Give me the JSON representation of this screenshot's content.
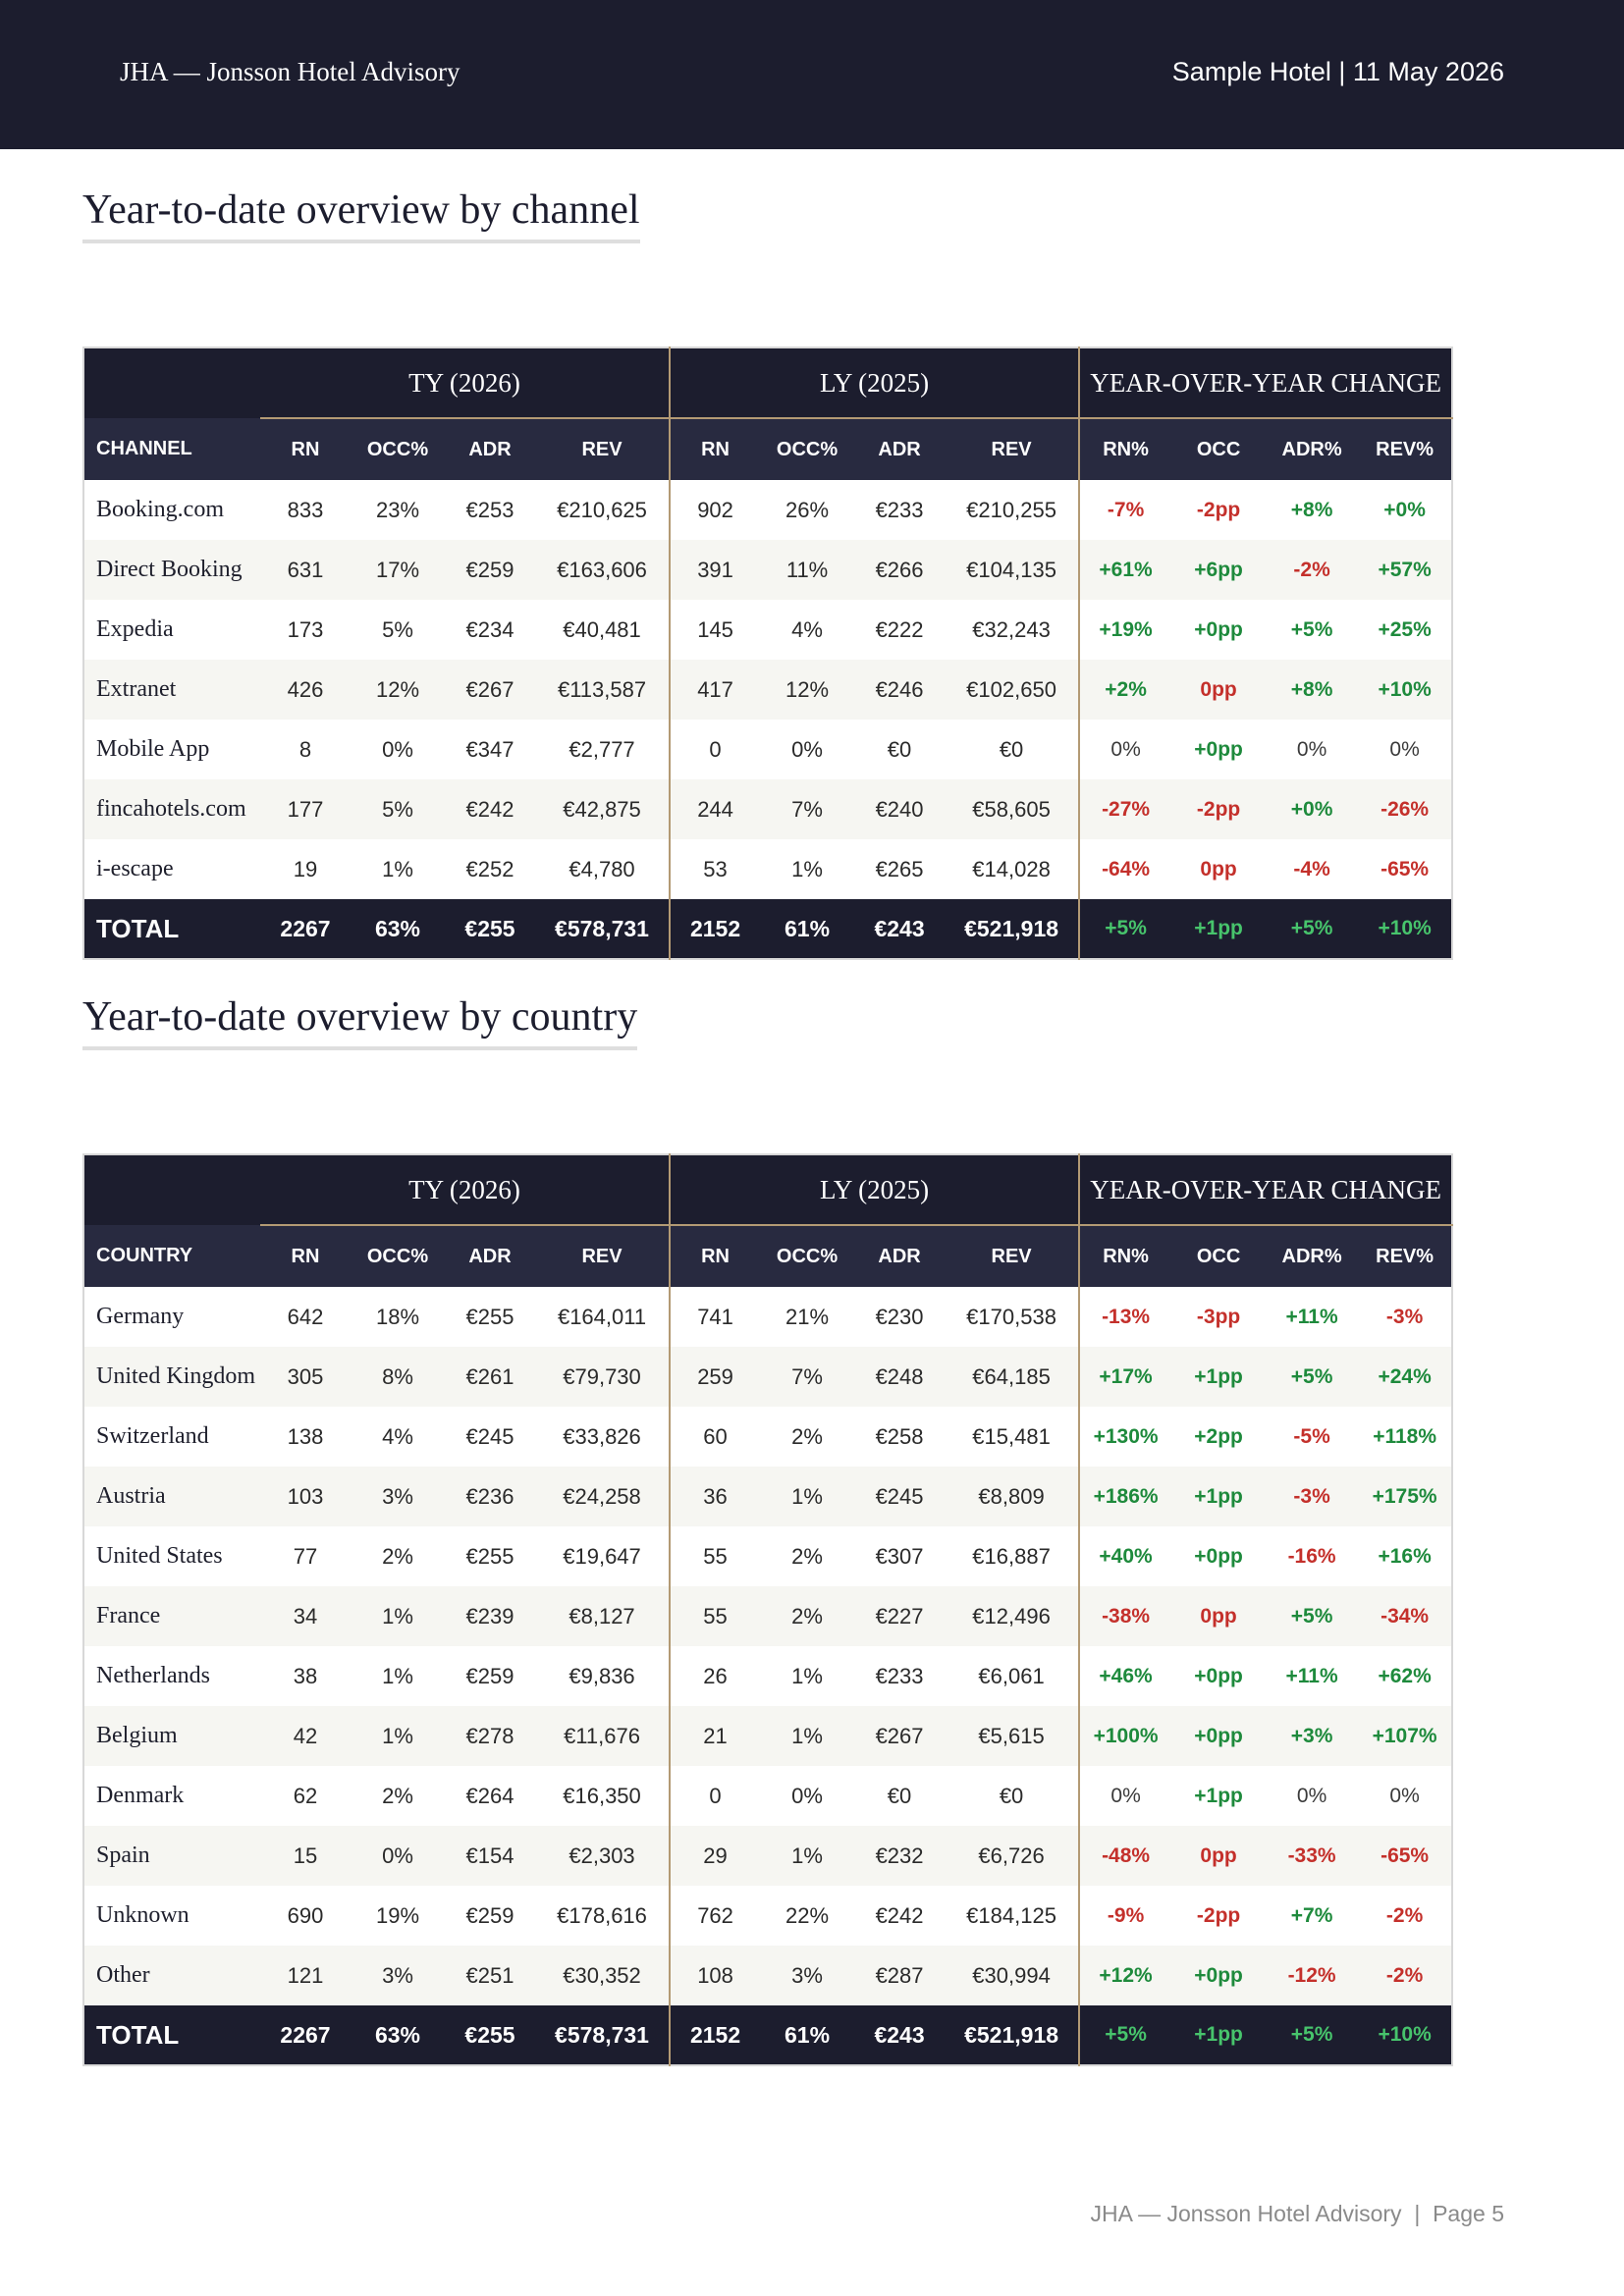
{
  "header": {
    "brand": "JHA — Jonsson Hotel Advisory",
    "meta": "Sample Hotel | 11 May 2026",
    "background": "#1c1d2e"
  },
  "colors": {
    "positive": "#1e8a3c",
    "negative": "#c4302b",
    "accent_line": "#b39a74",
    "total_positive": "#47c46c"
  },
  "groups": {
    "ty": "TY (2026)",
    "ly": "LY (2025)",
    "yoy": "YEAR-OVER-YEAR CHANGE"
  },
  "columns": [
    "RN",
    "OCC%",
    "ADR",
    "REV",
    "RN",
    "OCC%",
    "ADR",
    "REV",
    "RN%",
    "OCC",
    "ADR%",
    "REV%"
  ],
  "channel_section": {
    "title": "Year-to-date overview by channel",
    "first_col": "CHANNEL",
    "rows": [
      {
        "label": "Booking.com",
        "cells": [
          "833",
          "23%",
          "€253",
          "€210,625",
          "902",
          "26%",
          "€233",
          "€210,255",
          "-7%",
          "-2pp",
          "+8%",
          "+0%"
        ],
        "tones": [
          "neg",
          "neg",
          "pos",
          "pos"
        ]
      },
      {
        "label": "Direct Booking",
        "cells": [
          "631",
          "17%",
          "€259",
          "€163,606",
          "391",
          "11%",
          "€266",
          "€104,135",
          "+61%",
          "+6pp",
          "-2%",
          "+57%"
        ],
        "tones": [
          "pos",
          "pos",
          "neg",
          "pos"
        ]
      },
      {
        "label": "Expedia",
        "cells": [
          "173",
          "5%",
          "€234",
          "€40,481",
          "145",
          "4%",
          "€222",
          "€32,243",
          "+19%",
          "+0pp",
          "+5%",
          "+25%"
        ],
        "tones": [
          "pos",
          "pos",
          "pos",
          "pos"
        ]
      },
      {
        "label": "Extranet",
        "cells": [
          "426",
          "12%",
          "€267",
          "€113,587",
          "417",
          "12%",
          "€246",
          "€102,650",
          "+2%",
          "0pp",
          "+8%",
          "+10%"
        ],
        "tones": [
          "pos",
          "neg",
          "pos",
          "pos"
        ]
      },
      {
        "label": "Mobile App",
        "cells": [
          "8",
          "0%",
          "€347",
          "€2,777",
          "0",
          "0%",
          "€0",
          "€0",
          "0%",
          "+0pp",
          "0%",
          "0%"
        ],
        "tones": [
          "neu",
          "pos",
          "neu",
          "neu"
        ]
      },
      {
        "label": "fincahotels.com",
        "cells": [
          "177",
          "5%",
          "€242",
          "€42,875",
          "244",
          "7%",
          "€240",
          "€58,605",
          "-27%",
          "-2pp",
          "+0%",
          "-26%"
        ],
        "tones": [
          "neg",
          "neg",
          "pos",
          "neg"
        ]
      },
      {
        "label": "i-escape",
        "cells": [
          "19",
          "1%",
          "€252",
          "€4,780",
          "53",
          "1%",
          "€265",
          "€14,028",
          "-64%",
          "0pp",
          "-4%",
          "-65%"
        ],
        "tones": [
          "neg",
          "neg",
          "neg",
          "neg"
        ]
      }
    ],
    "total": {
      "label": "TOTAL",
      "cells": [
        "2267",
        "63%",
        "€255",
        "€578,731",
        "2152",
        "61%",
        "€243",
        "€521,918",
        "+5%",
        "+1pp",
        "+5%",
        "+10%"
      ]
    }
  },
  "country_section": {
    "title": "Year-to-date overview by country",
    "first_col": "COUNTRY",
    "rows": [
      {
        "label": "Germany",
        "cells": [
          "642",
          "18%",
          "€255",
          "€164,011",
          "741",
          "21%",
          "€230",
          "€170,538",
          "-13%",
          "-3pp",
          "+11%",
          "-3%"
        ],
        "tones": [
          "neg",
          "neg",
          "pos",
          "neg"
        ]
      },
      {
        "label": "United Kingdom",
        "cells": [
          "305",
          "8%",
          "€261",
          "€79,730",
          "259",
          "7%",
          "€248",
          "€64,185",
          "+17%",
          "+1pp",
          "+5%",
          "+24%"
        ],
        "tones": [
          "pos",
          "pos",
          "pos",
          "pos"
        ]
      },
      {
        "label": "Switzerland",
        "cells": [
          "138",
          "4%",
          "€245",
          "€33,826",
          "60",
          "2%",
          "€258",
          "€15,481",
          "+130%",
          "+2pp",
          "-5%",
          "+118%"
        ],
        "tones": [
          "pos",
          "pos",
          "neg",
          "pos"
        ]
      },
      {
        "label": "Austria",
        "cells": [
          "103",
          "3%",
          "€236",
          "€24,258",
          "36",
          "1%",
          "€245",
          "€8,809",
          "+186%",
          "+1pp",
          "-3%",
          "+175%"
        ],
        "tones": [
          "pos",
          "pos",
          "neg",
          "pos"
        ]
      },
      {
        "label": "United States",
        "cells": [
          "77",
          "2%",
          "€255",
          "€19,647",
          "55",
          "2%",
          "€307",
          "€16,887",
          "+40%",
          "+0pp",
          "-16%",
          "+16%"
        ],
        "tones": [
          "pos",
          "pos",
          "neg",
          "pos"
        ]
      },
      {
        "label": "France",
        "cells": [
          "34",
          "1%",
          "€239",
          "€8,127",
          "55",
          "2%",
          "€227",
          "€12,496",
          "-38%",
          "0pp",
          "+5%",
          "-34%"
        ],
        "tones": [
          "neg",
          "neg",
          "pos",
          "neg"
        ]
      },
      {
        "label": "Netherlands",
        "cells": [
          "38",
          "1%",
          "€259",
          "€9,836",
          "26",
          "1%",
          "€233",
          "€6,061",
          "+46%",
          "+0pp",
          "+11%",
          "+62%"
        ],
        "tones": [
          "pos",
          "pos",
          "pos",
          "pos"
        ]
      },
      {
        "label": "Belgium",
        "cells": [
          "42",
          "1%",
          "€278",
          "€11,676",
          "21",
          "1%",
          "€267",
          "€5,615",
          "+100%",
          "+0pp",
          "+3%",
          "+107%"
        ],
        "tones": [
          "pos",
          "pos",
          "pos",
          "pos"
        ]
      },
      {
        "label": "Denmark",
        "cells": [
          "62",
          "2%",
          "€264",
          "€16,350",
          "0",
          "0%",
          "€0",
          "€0",
          "0%",
          "+1pp",
          "0%",
          "0%"
        ],
        "tones": [
          "neu",
          "pos",
          "neu",
          "neu"
        ]
      },
      {
        "label": "Spain",
        "cells": [
          "15",
          "0%",
          "€154",
          "€2,303",
          "29",
          "1%",
          "€232",
          "€6,726",
          "-48%",
          "0pp",
          "-33%",
          "-65%"
        ],
        "tones": [
          "neg",
          "neg",
          "neg",
          "neg"
        ]
      },
      {
        "label": "Unknown",
        "cells": [
          "690",
          "19%",
          "€259",
          "€178,616",
          "762",
          "22%",
          "€242",
          "€184,125",
          "-9%",
          "-2pp",
          "+7%",
          "-2%"
        ],
        "tones": [
          "neg",
          "neg",
          "pos",
          "neg"
        ]
      },
      {
        "label": "Other",
        "cells": [
          "121",
          "3%",
          "€251",
          "€30,352",
          "108",
          "3%",
          "€287",
          "€30,994",
          "+12%",
          "+0pp",
          "-12%",
          "-2%"
        ],
        "tones": [
          "pos",
          "pos",
          "neg",
          "neg"
        ]
      }
    ],
    "total": {
      "label": "TOTAL",
      "cells": [
        "2267",
        "63%",
        "€255",
        "€578,731",
        "2152",
        "61%",
        "€243",
        "€521,918",
        "+5%",
        "+1pp",
        "+5%",
        "+10%"
      ]
    }
  },
  "footer": {
    "text": "JHA — Jonsson Hotel Advisory  |  Page 5"
  }
}
